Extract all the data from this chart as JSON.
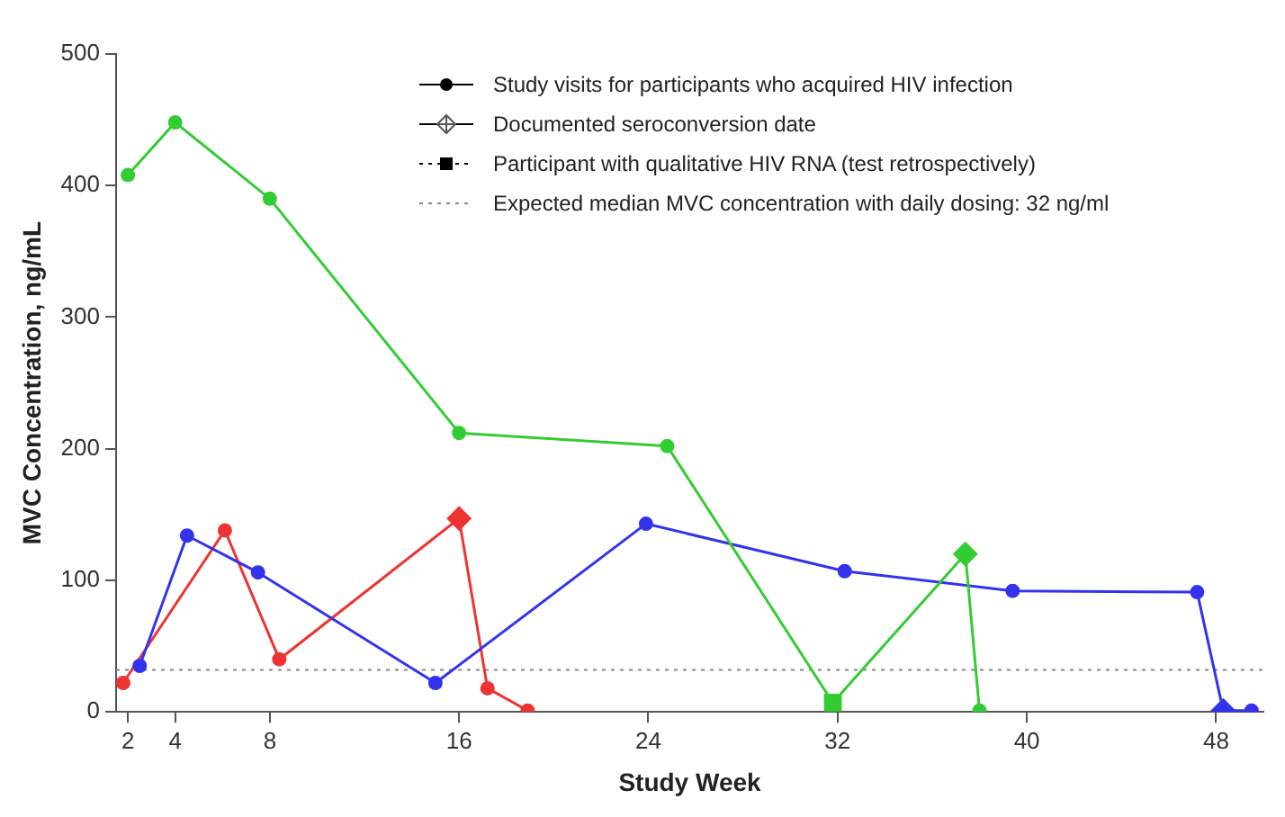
{
  "chart_data": {
    "type": "line",
    "xlabel": "Study Week",
    "ylabel": "MVC Concentration, ng/mL",
    "xlim": [
      1.5,
      50
    ],
    "xticks": [
      2,
      4,
      8,
      16,
      24,
      32,
      40,
      48
    ],
    "ylim": [
      0,
      500
    ],
    "yticks": [
      0,
      100,
      200,
      300,
      400,
      500
    ],
    "grid": false,
    "marker": "circle",
    "line_style": "solid",
    "annotations": [
      "Study visits for participants who acquired HIV infection",
      "Documented seroconversion date",
      "Participant with qualitative HIV RNA (test retrospectively)"
    ],
    "series": [
      {
        "color": "#33cc33",
        "x": [
          2,
          4,
          8,
          16,
          24.8,
          31.8,
          37.4,
          38
        ],
        "values": [
          408,
          448,
          390,
          212,
          202,
          7,
          120,
          1
        ]
      },
      {
        "color": "#3333ee",
        "x": [
          2.5,
          4.5,
          7.5,
          15,
          23.9,
          32.3,
          39.4,
          47.2,
          48.3,
          49.5
        ],
        "values": [
          35,
          134,
          106,
          22,
          143,
          107,
          92,
          91,
          1,
          1
        ]
      },
      {
        "color": "#ee3333",
        "x": [
          1.8,
          6.1,
          8.4,
          16,
          17.2,
          18.9
        ],
        "values": [
          22,
          138,
          40,
          147,
          18,
          1
        ]
      },
      {
        "type": "scatter",
        "marker": "diamond",
        "colors": [
          "#ee3333",
          "#33cc33",
          "#3333ee"
        ],
        "x": [
          16,
          37.4,
          48.3
        ],
        "values": [
          147,
          120,
          1
        ]
      },
      {
        "type": "scatter",
        "marker": "square",
        "colors": [
          "#33cc33"
        ],
        "x": [
          31.8
        ],
        "values": [
          7
        ]
      }
    ],
    "ref_lines": [
      {
        "axis": "y",
        "value": 32,
        "label": "Expected median MVC concentration with daily dosing: 32 ng/ml",
        "color": "#888888",
        "line_style": "dotted"
      }
    ]
  }
}
